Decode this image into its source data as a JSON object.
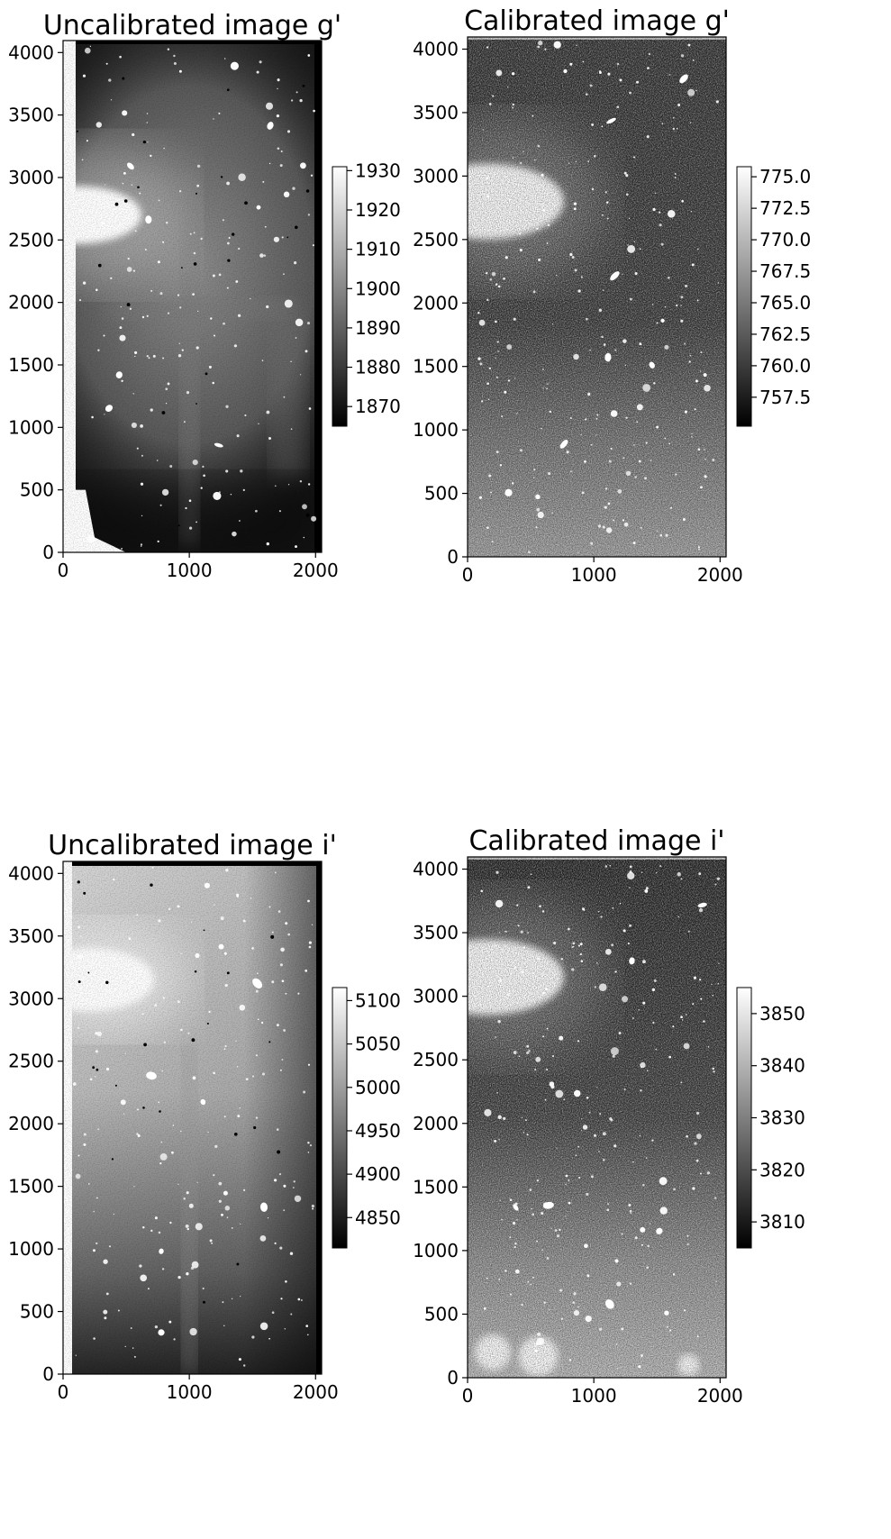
{
  "chart_data": [
    {
      "type": "heatmap",
      "title": "Uncalibrated image g'",
      "colormap": "gray",
      "xticks": [
        "0",
        "1000",
        "2000"
      ],
      "yticks": [
        "0",
        "500",
        "1000",
        "1500",
        "2000",
        "2500",
        "3000",
        "3500",
        "4000"
      ],
      "xlim": [
        0,
        2048
      ],
      "ylim": [
        0,
        4096
      ],
      "colorbar": {
        "range": [
          1865,
          1931
        ],
        "ticks": [
          "1870",
          "1880",
          "1890",
          "1900",
          "1910",
          "1920",
          "1930"
        ]
      },
      "features": {
        "halo": {
          "x": 300,
          "y": 2700,
          "rx": 560,
          "ry": 300
        },
        "glow": {
          "x": 1000,
          "y": 2300,
          "r": 1500
        },
        "vertical_band_x": 1000,
        "horizontal_band_y": 1950,
        "dark_bottom_right_corner": true
      }
    },
    {
      "type": "heatmap",
      "title": "Calibrated image g'",
      "colormap": "gray",
      "xticks": [
        "0",
        "1000",
        "2000"
      ],
      "yticks": [
        "0",
        "500",
        "1000",
        "1500",
        "2000",
        "2500",
        "3000",
        "3500",
        "4000"
      ],
      "xlim": [
        0,
        2048
      ],
      "ylim": [
        0,
        4096
      ],
      "colorbar": {
        "range": [
          755.2,
          775.8
        ],
        "ticks": [
          "757.5",
          "760.0",
          "762.5",
          "765.0",
          "767.5",
          "770.0",
          "772.5",
          "775.0"
        ]
      },
      "features": {
        "halo": {
          "x": 300,
          "y": 2800,
          "rx": 800,
          "ry": 450
        },
        "gradient": "bright-bottom"
      }
    },
    {
      "type": "heatmap",
      "title": "Uncalibrated image i'",
      "colormap": "gray",
      "xticks": [
        "0",
        "1000",
        "2000"
      ],
      "yticks": [
        "0",
        "500",
        "1000",
        "1500",
        "2000",
        "2500",
        "3000",
        "3500",
        "4000"
      ],
      "xlim": [
        0,
        2048
      ],
      "ylim": [
        0,
        4096
      ],
      "colorbar": {
        "range": [
          4815,
          5115
        ],
        "ticks": [
          "4850",
          "4900",
          "4950",
          "5000",
          "5050",
          "5100"
        ]
      },
      "features": {
        "halo": {
          "x": 350,
          "y": 3150,
          "rx": 600,
          "ry": 300
        },
        "vertical_band_x": 1000,
        "gradient": "dark-bottom-right"
      }
    },
    {
      "type": "heatmap",
      "title": "Calibrated image i'",
      "colormap": "gray",
      "xticks": [
        "0",
        "1000",
        "2000"
      ],
      "yticks": [
        "0",
        "500",
        "1000",
        "1500",
        "2000",
        "2500",
        "3000",
        "3500",
        "4000"
      ],
      "xlim": [
        0,
        2048
      ],
      "ylim": [
        0,
        4096
      ],
      "colorbar": {
        "range": [
          3805,
          3855
        ],
        "ticks": [
          "3810",
          "3820",
          "3830",
          "3840",
          "3850"
        ]
      },
      "features": {
        "halo": {
          "x": 300,
          "y": 3150,
          "rx": 800,
          "ry": 450
        },
        "gradient": "bright-bottom"
      }
    }
  ]
}
